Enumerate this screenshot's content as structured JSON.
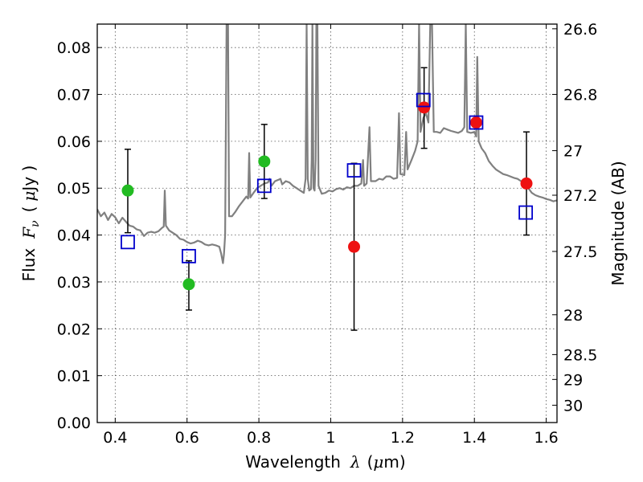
{
  "chart_data": {
    "type": "scatter",
    "xlabel_text": "Wavelength",
    "xlabel_symbol": "λ",
    "xlabel_unit_open": "(",
    "xlabel_unit_mu": "μ",
    "xlabel_unit_rest": "m)",
    "ylabel_text": "Flux",
    "ylabel_symbol": "F",
    "ylabel_sub": "ν",
    "ylabel_unit_open": "(",
    "ylabel_unit_mu": "μ",
    "ylabel_unit_rest": "Jy )",
    "y2label": "Magnitude (AB)",
    "xlim": [
      0.35,
      1.63
    ],
    "ylim": [
      0.0,
      0.085
    ],
    "grid": true,
    "x_ticks": [
      {
        "value": 0.4,
        "label": "0.4"
      },
      {
        "value": 0.6,
        "label": "0.6"
      },
      {
        "value": 0.8,
        "label": "0.8"
      },
      {
        "value": 1.0,
        "label": "1"
      },
      {
        "value": 1.2,
        "label": "1.2"
      },
      {
        "value": 1.4,
        "label": "1.4"
      },
      {
        "value": 1.6,
        "label": "1.6"
      }
    ],
    "y_ticks": [
      {
        "value": 0.0,
        "label": "0.00"
      },
      {
        "value": 0.01,
        "label": "0.01"
      },
      {
        "value": 0.02,
        "label": "0.02"
      },
      {
        "value": 0.03,
        "label": "0.03"
      },
      {
        "value": 0.04,
        "label": "0.04"
      },
      {
        "value": 0.05,
        "label": "0.05"
      },
      {
        "value": 0.06,
        "label": "0.06"
      },
      {
        "value": 0.07,
        "label": "0.07"
      },
      {
        "value": 0.08,
        "label": "0.08"
      }
    ],
    "y2_ticks": [
      {
        "flux": 0.084,
        "label": "26.6"
      },
      {
        "flux": 0.07,
        "label": "26.8"
      },
      {
        "flux": 0.058,
        "label": "27"
      },
      {
        "flux": 0.0485,
        "label": "27.2"
      },
      {
        "flux": 0.0365,
        "label": "27.5"
      },
      {
        "flux": 0.023,
        "label": "28"
      },
      {
        "flux": 0.0145,
        "label": "28.5"
      },
      {
        "flux": 0.0092,
        "label": "29"
      },
      {
        "flux": 0.0037,
        "label": "30"
      }
    ],
    "observed_points": [
      {
        "x": 0.435,
        "y": 0.0495,
        "err_low": 0.0405,
        "err_high": 0.0583,
        "color": "#22bb22"
      },
      {
        "x": 0.605,
        "y": 0.0295,
        "err_low": 0.024,
        "err_high": 0.0345,
        "color": "#22bb22"
      },
      {
        "x": 0.815,
        "y": 0.0557,
        "err_low": 0.0478,
        "err_high": 0.0636,
        "color": "#22bb22"
      },
      {
        "x": 1.065,
        "y": 0.0375,
        "err_low": 0.0197,
        "err_high": 0.0553,
        "color": "#ee1111"
      },
      {
        "x": 1.26,
        "y": 0.0672,
        "err_low": 0.0585,
        "err_high": 0.0757,
        "color": "#ee1111"
      },
      {
        "x": 1.405,
        "y": 0.064,
        "err_low": null,
        "err_high": null,
        "color": "#ee1111"
      },
      {
        "x": 1.545,
        "y": 0.051,
        "err_low": 0.04,
        "err_high": 0.062,
        "color": "#ee1111"
      }
    ],
    "model_points": [
      {
        "x": 0.435,
        "y": 0.0385
      },
      {
        "x": 0.605,
        "y": 0.0355
      },
      {
        "x": 0.815,
        "y": 0.0505
      },
      {
        "x": 1.065,
        "y": 0.0538
      },
      {
        "x": 1.258,
        "y": 0.0688
      },
      {
        "x": 1.405,
        "y": 0.064
      },
      {
        "x": 1.543,
        "y": 0.0448
      }
    ],
    "colors": {
      "spectrum": "#808080",
      "model_box": "#0000cc",
      "errorbar": "#000000",
      "grid": "#555555"
    },
    "spectrum": [
      [
        0.35,
        0.0455
      ],
      [
        0.36,
        0.044
      ],
      [
        0.37,
        0.0448
      ],
      [
        0.38,
        0.0432
      ],
      [
        0.39,
        0.0445
      ],
      [
        0.4,
        0.0438
      ],
      [
        0.41,
        0.0425
      ],
      [
        0.42,
        0.0437
      ],
      [
        0.43,
        0.0428
      ],
      [
        0.44,
        0.042
      ],
      [
        0.45,
        0.0418
      ],
      [
        0.46,
        0.0412
      ],
      [
        0.47,
        0.041
      ],
      [
        0.48,
        0.0398
      ],
      [
        0.49,
        0.0405
      ],
      [
        0.5,
        0.0407
      ],
      [
        0.51,
        0.0405
      ],
      [
        0.52,
        0.0408
      ],
      [
        0.53,
        0.0415
      ],
      [
        0.535,
        0.0418
      ],
      [
        0.538,
        0.0495
      ],
      [
        0.541,
        0.042
      ],
      [
        0.55,
        0.041
      ],
      [
        0.56,
        0.0405
      ],
      [
        0.57,
        0.04
      ],
      [
        0.58,
        0.0392
      ],
      [
        0.59,
        0.039
      ],
      [
        0.6,
        0.0385
      ],
      [
        0.61,
        0.0382
      ],
      [
        0.62,
        0.0384
      ],
      [
        0.63,
        0.0388
      ],
      [
        0.64,
        0.0385
      ],
      [
        0.65,
        0.038
      ],
      [
        0.66,
        0.0378
      ],
      [
        0.67,
        0.038
      ],
      [
        0.68,
        0.0378
      ],
      [
        0.69,
        0.0375
      ],
      [
        0.695,
        0.036
      ],
      [
        0.7,
        0.034
      ],
      [
        0.703,
        0.036
      ],
      [
        0.706,
        0.04
      ],
      [
        0.71,
        0.085
      ],
      [
        0.714,
        0.085
      ],
      [
        0.717,
        0.044
      ],
      [
        0.725,
        0.044
      ],
      [
        0.735,
        0.045
      ],
      [
        0.745,
        0.0462
      ],
      [
        0.755,
        0.0472
      ],
      [
        0.765,
        0.0482
      ],
      [
        0.77,
        0.0478
      ],
      [
        0.773,
        0.0575
      ],
      [
        0.776,
        0.048
      ],
      [
        0.785,
        0.049
      ],
      [
        0.795,
        0.05
      ],
      [
        0.805,
        0.0505
      ],
      [
        0.815,
        0.051
      ],
      [
        0.825,
        0.0512
      ],
      [
        0.83,
        0.052
      ],
      [
        0.835,
        0.0505
      ],
      [
        0.845,
        0.0515
      ],
      [
        0.855,
        0.0518
      ],
      [
        0.86,
        0.052
      ],
      [
        0.865,
        0.0508
      ],
      [
        0.875,
        0.0515
      ],
      [
        0.885,
        0.0512
      ],
      [
        0.895,
        0.0505
      ],
      [
        0.905,
        0.05
      ],
      [
        0.915,
        0.0495
      ],
      [
        0.925,
        0.049
      ],
      [
        0.93,
        0.052
      ],
      [
        0.933,
        0.085
      ],
      [
        0.936,
        0.052
      ],
      [
        0.94,
        0.0495
      ],
      [
        0.945,
        0.0498
      ],
      [
        0.947,
        0.056
      ],
      [
        0.949,
        0.085
      ],
      [
        0.952,
        0.05
      ],
      [
        0.955,
        0.0495
      ],
      [
        0.958,
        0.056
      ],
      [
        0.96,
        0.085
      ],
      [
        0.963,
        0.085
      ],
      [
        0.966,
        0.0505
      ],
      [
        0.975,
        0.0488
      ],
      [
        0.985,
        0.049
      ],
      [
        0.995,
        0.0495
      ],
      [
        1.005,
        0.0493
      ],
      [
        1.015,
        0.0498
      ],
      [
        1.025,
        0.05
      ],
      [
        1.035,
        0.0497
      ],
      [
        1.045,
        0.0502
      ],
      [
        1.055,
        0.05
      ],
      [
        1.065,
        0.0505
      ],
      [
        1.075,
        0.0505
      ],
      [
        1.085,
        0.051
      ],
      [
        1.09,
        0.056
      ],
      [
        1.093,
        0.0505
      ],
      [
        1.1,
        0.051
      ],
      [
        1.108,
        0.063
      ],
      [
        1.112,
        0.0515
      ],
      [
        1.125,
        0.0515
      ],
      [
        1.135,
        0.052
      ],
      [
        1.145,
        0.0518
      ],
      [
        1.155,
        0.0525
      ],
      [
        1.165,
        0.0525
      ],
      [
        1.175,
        0.052
      ],
      [
        1.185,
        0.0522
      ],
      [
        1.19,
        0.066
      ],
      [
        1.194,
        0.053
      ],
      [
        1.205,
        0.0528
      ],
      [
        1.21,
        0.062
      ],
      [
        1.214,
        0.054
      ],
      [
        1.225,
        0.056
      ],
      [
        1.235,
        0.058
      ],
      [
        1.242,
        0.06
      ],
      [
        1.246,
        0.085
      ],
      [
        1.25,
        0.062
      ],
      [
        1.258,
        0.065
      ],
      [
        1.265,
        0.066
      ],
      [
        1.272,
        0.064
      ],
      [
        1.277,
        0.085
      ],
      [
        1.282,
        0.085
      ],
      [
        1.287,
        0.062
      ],
      [
        1.295,
        0.062
      ],
      [
        1.305,
        0.0618
      ],
      [
        1.315,
        0.0628
      ],
      [
        1.325,
        0.0625
      ],
      [
        1.335,
        0.0622
      ],
      [
        1.345,
        0.062
      ],
      [
        1.355,
        0.0618
      ],
      [
        1.365,
        0.0622
      ],
      [
        1.372,
        0.063
      ],
      [
        1.376,
        0.085
      ],
      [
        1.38,
        0.062
      ],
      [
        1.39,
        0.0618
      ],
      [
        1.4,
        0.062
      ],
      [
        1.405,
        0.061
      ],
      [
        1.408,
        0.078
      ],
      [
        1.412,
        0.06
      ],
      [
        1.42,
        0.0585
      ],
      [
        1.43,
        0.0575
      ],
      [
        1.44,
        0.0558
      ],
      [
        1.45,
        0.0548
      ],
      [
        1.46,
        0.054
      ],
      [
        1.47,
        0.0535
      ],
      [
        1.48,
        0.053
      ],
      [
        1.49,
        0.0528
      ],
      [
        1.5,
        0.0525
      ],
      [
        1.51,
        0.0522
      ],
      [
        1.52,
        0.052
      ],
      [
        1.53,
        0.0515
      ],
      [
        1.54,
        0.0512
      ],
      [
        1.55,
        0.05
      ],
      [
        1.56,
        0.049
      ],
      [
        1.57,
        0.0485
      ],
      [
        1.58,
        0.0482
      ],
      [
        1.59,
        0.048
      ],
      [
        1.6,
        0.0477
      ],
      [
        1.61,
        0.0475
      ],
      [
        1.62,
        0.0472
      ],
      [
        1.63,
        0.0474
      ]
    ]
  }
}
